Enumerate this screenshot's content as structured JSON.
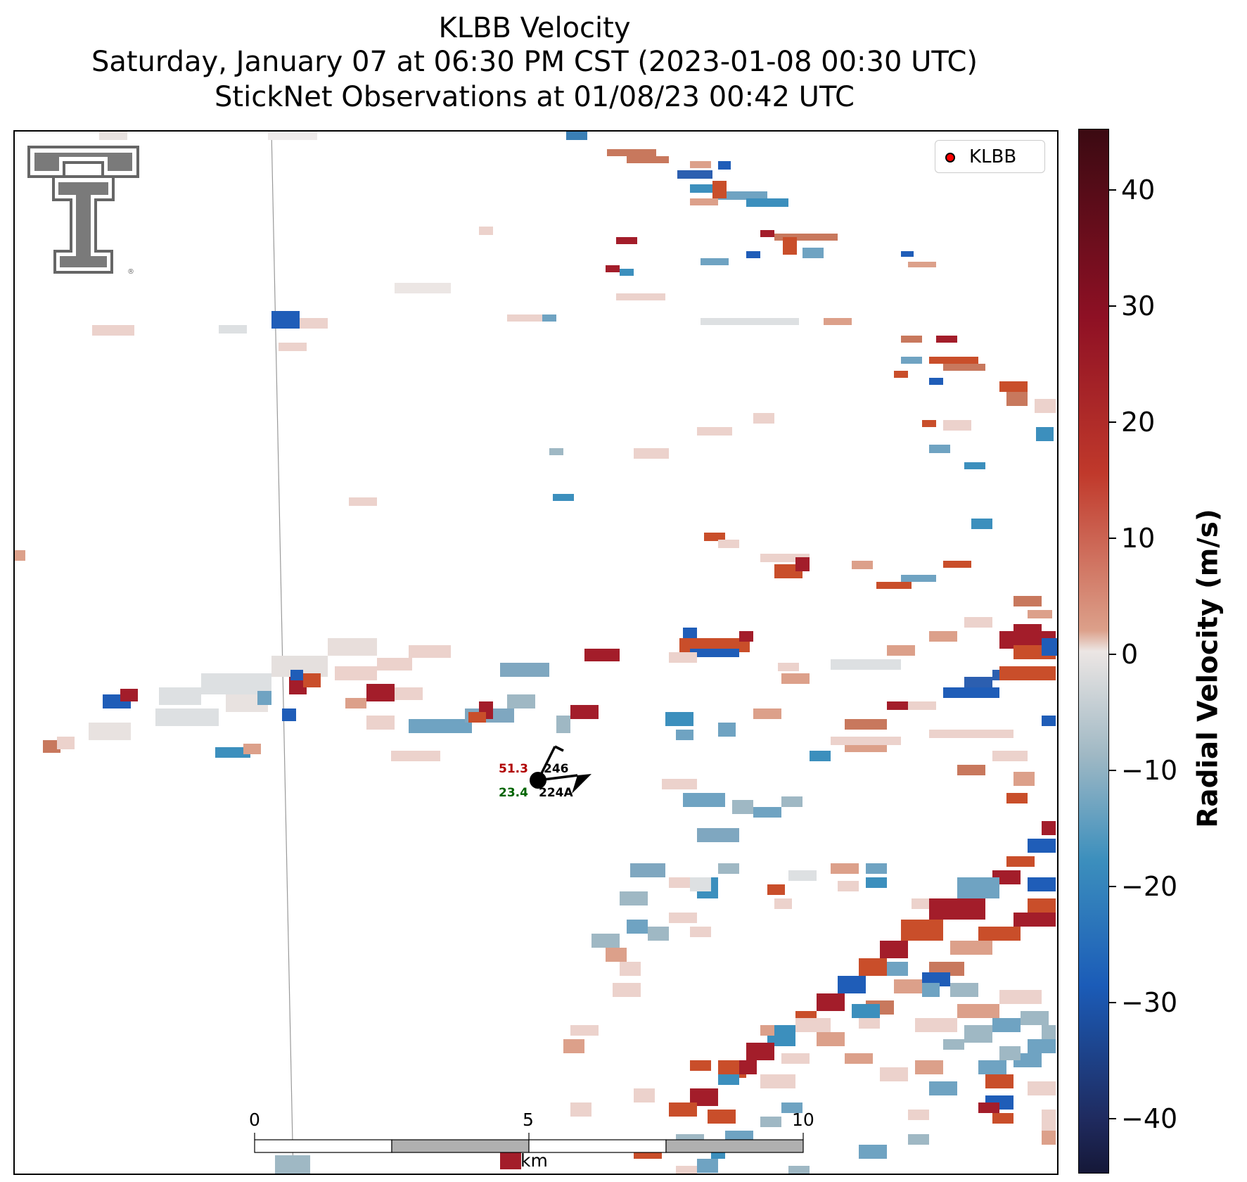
{
  "title": {
    "line1": "KLBB Velocity",
    "line2": "Saturday, January 07 at 06:30 PM CST (2023-01-08 00:30 UTC)",
    "line3": "StickNet Observations at 01/08/23 00:42 UTC"
  },
  "legend": {
    "label": "KLBB",
    "marker_color": "#ff0000"
  },
  "station": {
    "temperature": "51.3",
    "dewpoint": "23.4",
    "pressure": "246",
    "id": "224A",
    "temp_color": "#b00000",
    "dew_color": "#006400"
  },
  "scalebar": {
    "ticks": [
      "0",
      "5",
      "10"
    ],
    "unit": "km"
  },
  "colorbar": {
    "title": "Radial Velocity (m/s)",
    "ticks": [
      "40",
      "30",
      "20",
      "10",
      "0",
      "−10",
      "−20",
      "−30",
      "−40"
    ],
    "range": [
      -45,
      45
    ]
  },
  "logo": {
    "name": "texas-tech-double-t-logo"
  }
}
